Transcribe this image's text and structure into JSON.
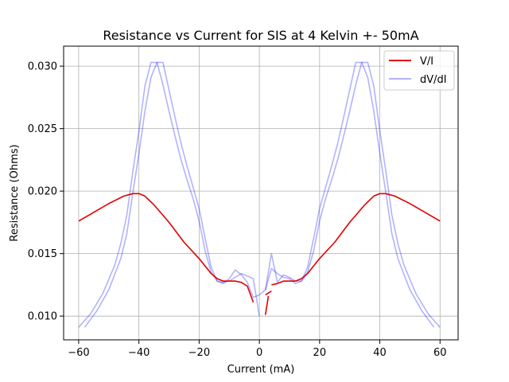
{
  "chart_data": {
    "type": "line",
    "title": "Resistance vs Current for SIS at 4 Kelvin +- 50mA",
    "xlabel": "Current (mA)",
    "ylabel": "Resistance (Ohms)",
    "xlim": [
      -65,
      66
    ],
    "ylim": [
      0.0081,
      0.0316
    ],
    "xticks": [
      -60,
      -40,
      -20,
      0,
      20,
      40,
      60
    ],
    "xtick_labels": [
      "−60",
      "−40",
      "−20",
      "0",
      "20",
      "40",
      "60"
    ],
    "yticks": [
      0.01,
      0.015,
      0.02,
      0.025,
      0.03
    ],
    "ytick_labels": [
      "0.010",
      "0.015",
      "0.020",
      "0.025",
      "0.030"
    ],
    "grid": true,
    "legend_position": "top-right",
    "series": [
      {
        "name": "V/I",
        "color": "#e00000",
        "opacity": 1.0,
        "segments": [
          [
            [
              -60,
              0.0176
            ],
            [
              -55,
              0.0183
            ],
            [
              -50,
              0.019
            ],
            [
              -45,
              0.0196
            ],
            [
              -42,
              0.0198
            ],
            [
              -40,
              0.0198
            ],
            [
              -38,
              0.0196
            ],
            [
              -35,
              0.0189
            ],
            [
              -30,
              0.0175
            ],
            [
              -25,
              0.0159
            ],
            [
              -20,
              0.0146
            ],
            [
              -16,
              0.0134
            ],
            [
              -14,
              0.013
            ],
            [
              -12,
              0.0128
            ],
            [
              -8,
              0.0128
            ],
            [
              -6,
              0.0127
            ],
            [
              -4,
              0.0124
            ],
            [
              -2,
              0.0111
            ]
          ],
          [
            [
              2,
              0.0101
            ],
            [
              3,
              0.0116
            ]
          ],
          [
            [
              2,
              0.0117
            ],
            [
              4,
              0.012
            ]
          ],
          [
            [
              4,
              0.0125
            ],
            [
              6,
              0.0126
            ],
            [
              8,
              0.0128
            ],
            [
              12,
              0.0128
            ],
            [
              14,
              0.013
            ],
            [
              16,
              0.0134
            ],
            [
              20,
              0.0146
            ],
            [
              25,
              0.0159
            ],
            [
              30,
              0.0175
            ],
            [
              35,
              0.0189
            ],
            [
              38,
              0.0196
            ],
            [
              40,
              0.0198
            ],
            [
              42,
              0.0198
            ],
            [
              45,
              0.0196
            ],
            [
              50,
              0.019
            ],
            [
              55,
              0.0183
            ],
            [
              60,
              0.0176
            ]
          ]
        ]
      },
      {
        "name": "dV/dI",
        "color": "#0000ff",
        "opacity": 0.3,
        "segments": [
          [
            [
              -60,
              0.0091
            ],
            [
              -56,
              0.0102
            ],
            [
              -52,
              0.0118
            ],
            [
              -48,
              0.0141
            ],
            [
              -46,
              0.0158
            ],
            [
              -44,
              0.0181
            ],
            [
              -42,
              0.0216
            ],
            [
              -40,
              0.0248
            ],
            [
              -38,
              0.0284
            ],
            [
              -36,
              0.0303
            ],
            [
              -34,
              0.0303
            ],
            [
              -32,
              0.0285
            ],
            [
              -30,
              0.0264
            ],
            [
              -28,
              0.0244
            ],
            [
              -26,
              0.0225
            ],
            [
              -24,
              0.0209
            ],
            [
              -22,
              0.0194
            ],
            [
              -20,
              0.0176
            ],
            [
              -18,
              0.0152
            ],
            [
              -16,
              0.0135
            ],
            [
              -14,
              0.0128
            ],
            [
              -12,
              0.0127
            ],
            [
              -10,
              0.0128
            ],
            [
              -8,
              0.0131
            ],
            [
              -6,
              0.0134
            ],
            [
              -4,
              0.0132
            ],
            [
              -2,
              0.013
            ],
            [
              0,
              0.01
            ]
          ],
          [
            [
              -58,
              0.0091
            ],
            [
              -54,
              0.0104
            ],
            [
              -50,
              0.0121
            ],
            [
              -46,
              0.0146
            ],
            [
              -44,
              0.0166
            ],
            [
              -42,
              0.0199
            ],
            [
              -40,
              0.023
            ],
            [
              -38,
              0.0264
            ],
            [
              -36,
              0.0291
            ],
            [
              -34,
              0.0303
            ],
            [
              -32,
              0.0303
            ],
            [
              -30,
              0.0281
            ],
            [
              -28,
              0.0259
            ],
            [
              -26,
              0.0238
            ],
            [
              -24,
              0.022
            ],
            [
              -22,
              0.0203
            ],
            [
              -20,
              0.0186
            ],
            [
              -18,
              0.0162
            ],
            [
              -16,
              0.0139
            ],
            [
              -14,
              0.0128
            ],
            [
              -12,
              0.0126
            ],
            [
              -10,
              0.013
            ],
            [
              -8,
              0.0137
            ],
            [
              -6,
              0.0133
            ],
            [
              -4,
              0.0127
            ],
            [
              -2,
              0.0115
            ],
            [
              0,
              0.0117
            ],
            [
              2,
              0.0121
            ],
            [
              4,
              0.015
            ],
            [
              6,
              0.0127
            ],
            [
              8,
              0.0133
            ],
            [
              10,
              0.0131
            ],
            [
              12,
              0.0128
            ],
            [
              14,
              0.0128
            ],
            [
              16,
              0.0135
            ],
            [
              18,
              0.0152
            ],
            [
              20,
              0.0176
            ],
            [
              22,
              0.0194
            ],
            [
              24,
              0.0209
            ],
            [
              26,
              0.0225
            ],
            [
              28,
              0.0244
            ],
            [
              30,
              0.0264
            ],
            [
              32,
              0.0285
            ],
            [
              34,
              0.0303
            ],
            [
              36,
              0.0303
            ],
            [
              38,
              0.0284
            ],
            [
              40,
              0.0248
            ],
            [
              42,
              0.0216
            ],
            [
              44,
              0.0181
            ],
            [
              46,
              0.0158
            ],
            [
              48,
              0.0141
            ],
            [
              52,
              0.0118
            ],
            [
              56,
              0.0102
            ],
            [
              60,
              0.0091
            ]
          ],
          [
            [
              2,
              0.0121
            ],
            [
              4,
              0.0138
            ],
            [
              6,
              0.0134
            ],
            [
              8,
              0.0131
            ],
            [
              10,
              0.013
            ],
            [
              12,
              0.0126
            ],
            [
              14,
              0.0128
            ],
            [
              16,
              0.0139
            ],
            [
              18,
              0.0162
            ],
            [
              20,
              0.0186
            ],
            [
              22,
              0.0203
            ],
            [
              24,
              0.022
            ],
            [
              26,
              0.0238
            ],
            [
              28,
              0.0259
            ],
            [
              30,
              0.0281
            ],
            [
              32,
              0.0303
            ],
            [
              34,
              0.0303
            ],
            [
              36,
              0.0291
            ],
            [
              38,
              0.0264
            ],
            [
              40,
              0.023
            ],
            [
              42,
              0.0199
            ],
            [
              44,
              0.0166
            ],
            [
              46,
              0.0146
            ],
            [
              50,
              0.0121
            ],
            [
              54,
              0.0104
            ],
            [
              58,
              0.0091
            ]
          ]
        ]
      }
    ]
  }
}
